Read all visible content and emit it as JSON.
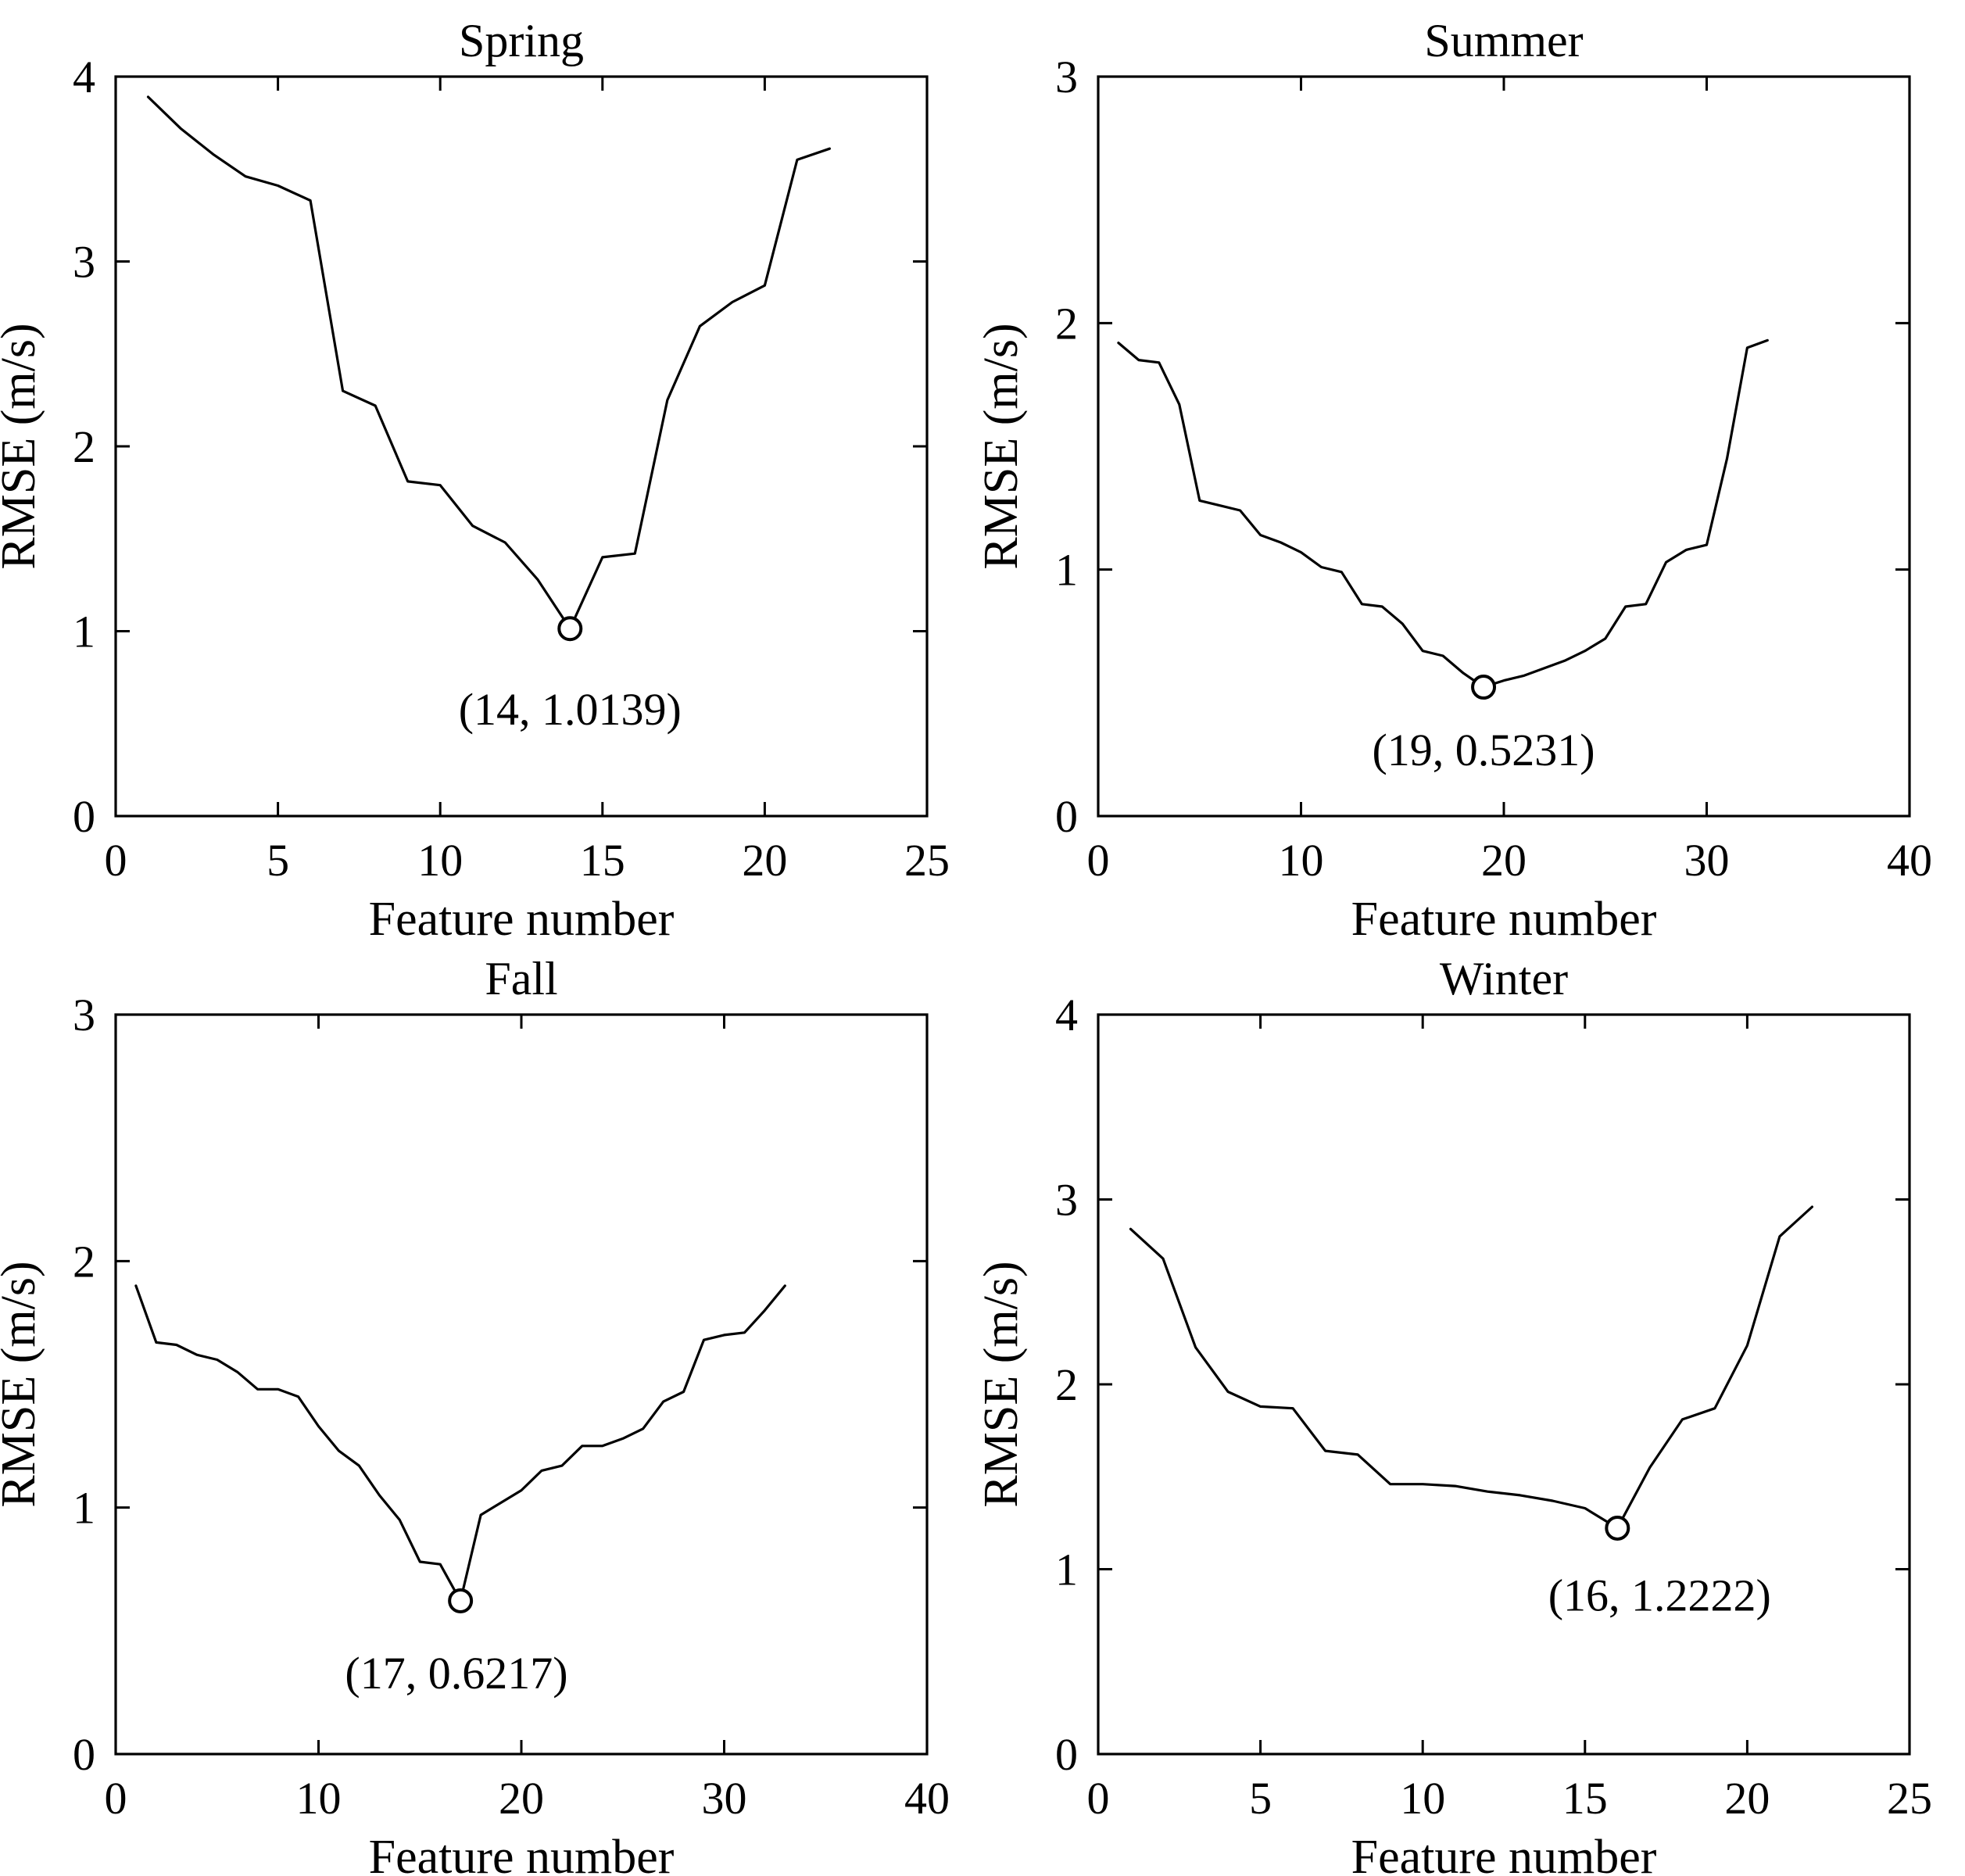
{
  "figure": {
    "background": "#ffffff",
    "ink_color": "#000000",
    "layout": "2x2 subplots"
  },
  "chart_data": [
    {
      "type": "line",
      "title": "Spring",
      "xlabel": "Feature number",
      "ylabel": "RMSE (m/s)",
      "xlim": [
        0,
        25
      ],
      "ylim": [
        0,
        4
      ],
      "xticks": [
        0,
        5,
        10,
        15,
        20,
        25
      ],
      "yticks": [
        0,
        1,
        2,
        3,
        4
      ],
      "grid": false,
      "legend": null,
      "x": [
        1,
        2,
        3,
        4,
        5,
        6,
        7,
        8,
        9,
        10,
        11,
        12,
        13,
        14,
        15,
        16,
        17,
        18,
        19,
        20,
        21,
        22
      ],
      "y": [
        3.89,
        3.72,
        3.58,
        3.46,
        3.41,
        3.33,
        2.3,
        2.22,
        1.81,
        1.79,
        1.57,
        1.48,
        1.28,
        1.0139,
        1.4,
        1.42,
        2.25,
        2.65,
        2.78,
        2.87,
        3.55,
        3.61
      ],
      "min_point": {
        "x": 14,
        "y": 1.0139
      },
      "annotation": "(14, 1.0139)",
      "annotation_center": {
        "x": 14.0,
        "y": 0.58
      }
    },
    {
      "type": "line",
      "title": "Summer",
      "xlabel": "Feature number",
      "ylabel": "RMSE (m/s)",
      "xlim": [
        0,
        40
      ],
      "ylim": [
        0,
        3
      ],
      "xticks": [
        0,
        10,
        20,
        30,
        40
      ],
      "yticks": [
        0,
        1,
        2,
        3
      ],
      "grid": false,
      "legend": null,
      "x": [
        1,
        2,
        3,
        4,
        5,
        6,
        7,
        8,
        9,
        10,
        11,
        12,
        13,
        14,
        15,
        16,
        17,
        18,
        19,
        20,
        21,
        22,
        23,
        24,
        25,
        26,
        27,
        28,
        29,
        30,
        31,
        32,
        33
      ],
      "y": [
        1.92,
        1.85,
        1.84,
        1.67,
        1.28,
        1.26,
        1.24,
        1.14,
        1.11,
        1.07,
        1.01,
        0.99,
        0.86,
        0.85,
        0.78,
        0.67,
        0.65,
        0.58,
        0.5231,
        0.55,
        0.57,
        0.6,
        0.63,
        0.67,
        0.72,
        0.85,
        0.86,
        1.03,
        1.08,
        1.1,
        1.45,
        1.9,
        1.93
      ],
      "min_point": {
        "x": 19,
        "y": 0.5231
      },
      "annotation": "(19, 0.5231)",
      "annotation_center": {
        "x": 19.0,
        "y": 0.27
      }
    },
    {
      "type": "line",
      "title": "Fall",
      "xlabel": "Feature number",
      "ylabel": "RMSE (m/s)",
      "xlim": [
        0,
        40
      ],
      "ylim": [
        0,
        3
      ],
      "xticks": [
        0,
        10,
        20,
        30,
        40
      ],
      "yticks": [
        0,
        1,
        2,
        3
      ],
      "grid": false,
      "legend": null,
      "x": [
        1,
        2,
        3,
        4,
        5,
        6,
        7,
        8,
        9,
        10,
        11,
        12,
        13,
        14,
        15,
        16,
        17,
        18,
        19,
        20,
        21,
        22,
        23,
        24,
        25,
        26,
        27,
        28,
        29,
        30,
        31,
        32,
        33
      ],
      "y": [
        1.9,
        1.67,
        1.66,
        1.62,
        1.6,
        1.55,
        1.48,
        1.48,
        1.45,
        1.33,
        1.23,
        1.17,
        1.05,
        0.95,
        0.78,
        0.77,
        0.6217,
        0.97,
        1.02,
        1.07,
        1.15,
        1.17,
        1.25,
        1.25,
        1.28,
        1.32,
        1.43,
        1.47,
        1.68,
        1.7,
        1.71,
        1.8,
        1.9
      ],
      "min_point": {
        "x": 17,
        "y": 0.6217
      },
      "annotation": "(17, 0.6217)",
      "annotation_center": {
        "x": 16.8,
        "y": 0.33
      }
    },
    {
      "type": "line",
      "title": "Winter",
      "xlabel": "Feature number",
      "ylabel": "RMSE (m/s)",
      "xlim": [
        0,
        25
      ],
      "ylim": [
        0,
        4
      ],
      "xticks": [
        0,
        5,
        10,
        15,
        20,
        25
      ],
      "yticks": [
        0,
        1,
        2,
        3,
        4
      ],
      "grid": false,
      "legend": null,
      "x": [
        1,
        2,
        3,
        4,
        5,
        6,
        7,
        8,
        9,
        10,
        11,
        12,
        13,
        14,
        15,
        16,
        17,
        18,
        19,
        20,
        21,
        22
      ],
      "y": [
        2.84,
        2.68,
        2.2,
        1.96,
        1.88,
        1.87,
        1.64,
        1.62,
        1.46,
        1.46,
        1.45,
        1.42,
        1.4,
        1.37,
        1.33,
        1.2222,
        1.55,
        1.81,
        1.87,
        2.21,
        2.8,
        2.96
      ],
      "min_point": {
        "x": 16,
        "y": 1.2222
      },
      "annotation": "(16, 1.2222)",
      "annotation_center": {
        "x": 17.3,
        "y": 0.86
      }
    }
  ]
}
